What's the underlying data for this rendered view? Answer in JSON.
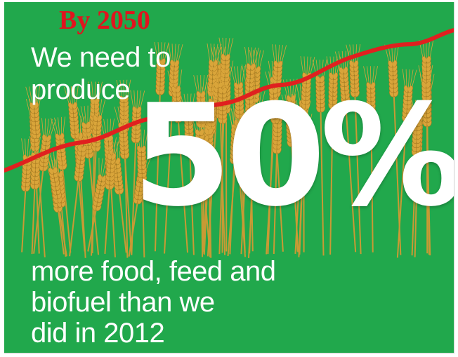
{
  "header": {
    "year_label": "By 2050"
  },
  "intro": {
    "line1": "We need to",
    "line2": "produce"
  },
  "highlight": {
    "value": "50%"
  },
  "outro": {
    "line1": "more food, feed and",
    "line2": "biofuel than we",
    "line3": "did in 2012"
  },
  "colors": {
    "background": "#21a84c",
    "accent_red": "#e0141e",
    "text": "#ffffff",
    "wheat": "#d9a53a"
  }
}
